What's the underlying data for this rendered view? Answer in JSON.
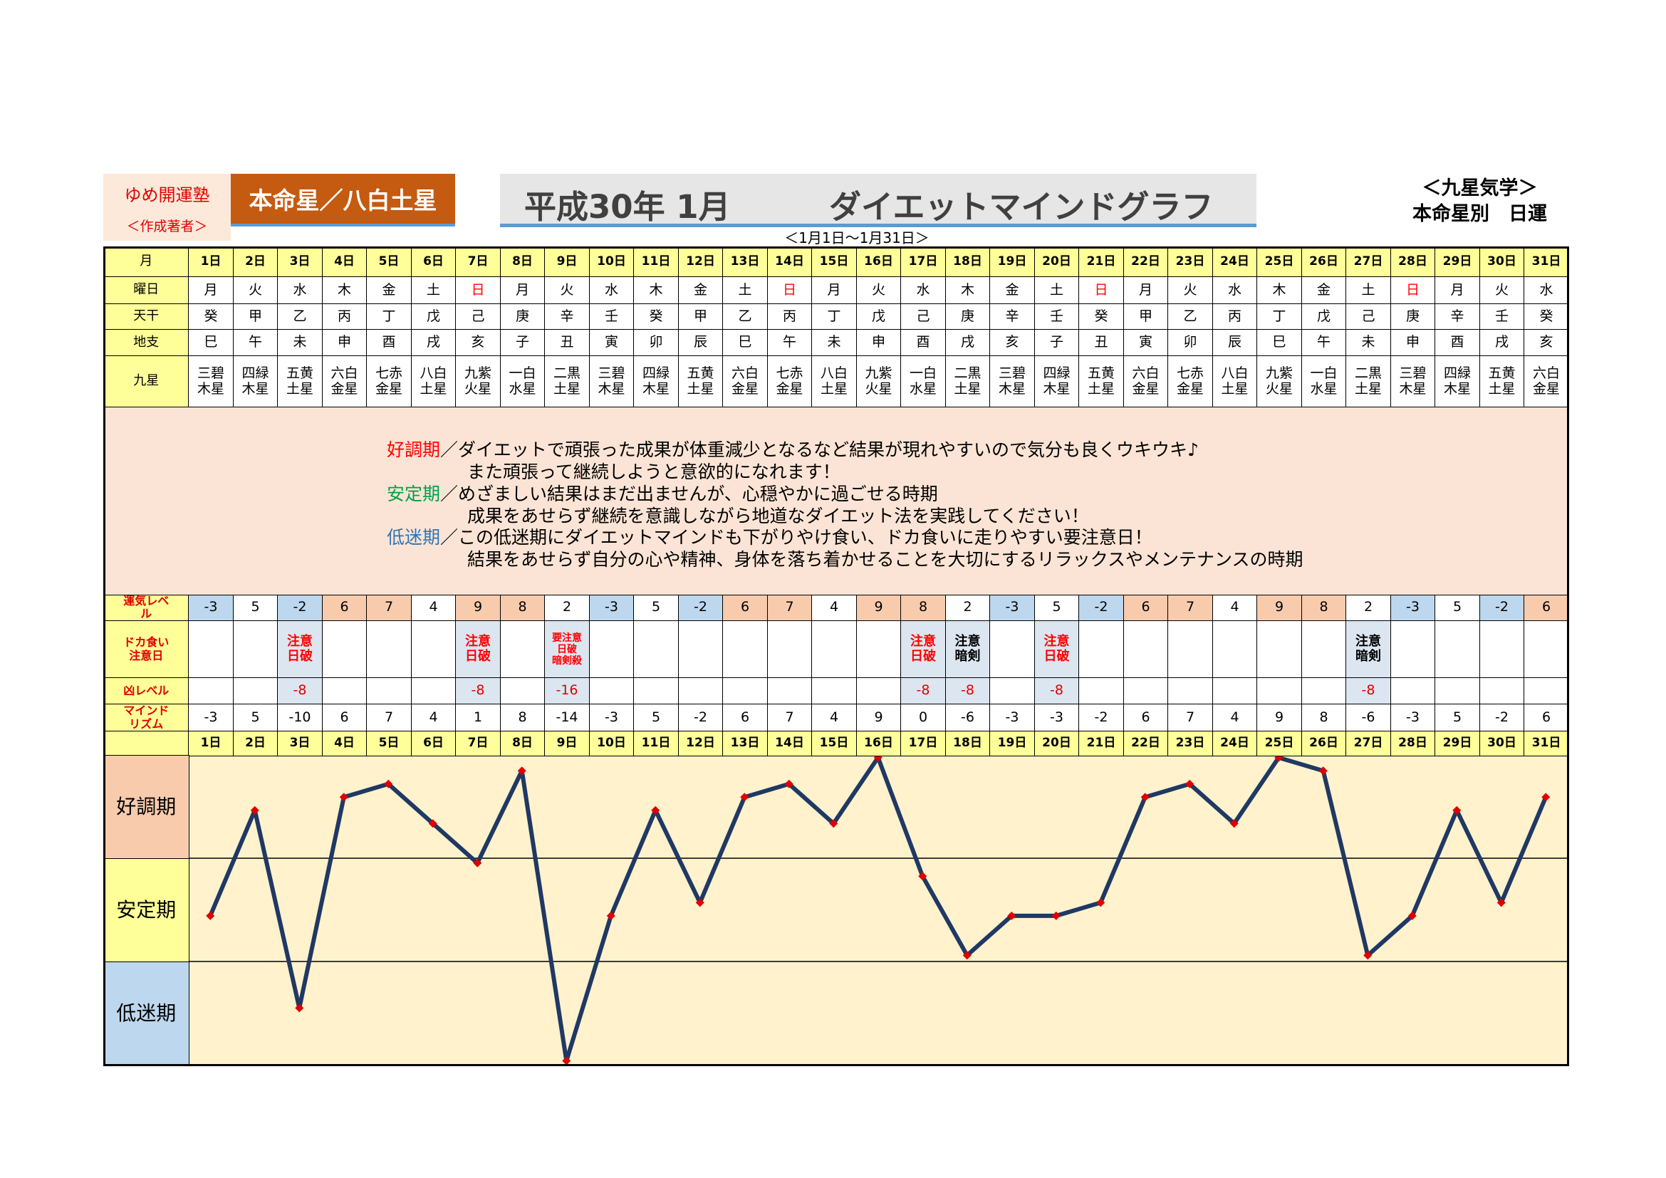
{
  "header": {
    "school": "ゆめ開運塾",
    "author": "＜作成著者＞",
    "honmei": "本命星／八白土星",
    "date": "平成30年 1月",
    "title": "ダイエットマインドグラフ",
    "period": "＜1月1日～1月31日＞",
    "system": "＜九星気学＞",
    "kind": "本命星別　日運"
  },
  "table": {
    "labels": {
      "day": "月",
      "weekday": "曜日",
      "stem": "天干",
      "branch": "地支",
      "star": "九星",
      "luck": "運気レベル",
      "caution": "ドカ食い注意日",
      "bad": "凶レベル",
      "mind": "マインドリズム"
    },
    "weekday": [
      "月",
      "火",
      "水",
      "木",
      "金",
      "土",
      "日",
      "月",
      "火",
      "水",
      "木",
      "金",
      "土",
      "日",
      "月",
      "火",
      "水",
      "木",
      "金",
      "土",
      "日",
      "月",
      "火",
      "水",
      "木",
      "金",
      "土",
      "日",
      "月",
      "火",
      "水"
    ],
    "weekday_color": [
      null,
      null,
      null,
      null,
      null,
      null,
      "#ff0000",
      null,
      null,
      null,
      null,
      null,
      null,
      "#ff0000",
      null,
      null,
      null,
      null,
      null,
      null,
      "#ff0000",
      null,
      null,
      null,
      null,
      null,
      null,
      "#ff0000",
      null,
      null,
      null
    ],
    "stem": [
      "癸",
      "甲",
      "乙",
      "丙",
      "丁",
      "戊",
      "己",
      "庚",
      "辛",
      "壬",
      "癸",
      "甲",
      "乙",
      "丙",
      "丁",
      "戊",
      "己",
      "庚",
      "辛",
      "壬",
      "癸",
      "甲",
      "乙",
      "丙",
      "丁",
      "戊",
      "己",
      "庚",
      "辛",
      "壬",
      "癸"
    ],
    "branch": [
      "巳",
      "午",
      "未",
      "申",
      "酉",
      "戌",
      "亥",
      "子",
      "丑",
      "寅",
      "卯",
      "辰",
      "巳",
      "午",
      "未",
      "申",
      "酉",
      "戌",
      "亥",
      "子",
      "丑",
      "寅",
      "卯",
      "辰",
      "巳",
      "午",
      "未",
      "申",
      "酉",
      "戌",
      "亥"
    ],
    "star": [
      "三碧木星",
      "四緑木星",
      "五黄土星",
      "六白金星",
      "七赤金星",
      "八白土星",
      "九紫火星",
      "一白水星",
      "二黒土星",
      "三碧木星",
      "四緑木星",
      "五黄土星",
      "六白金星",
      "七赤金星",
      "八白土星",
      "九紫火星",
      "一白水星",
      "二黒土星",
      "三碧木星",
      "四緑木星",
      "五黄土星",
      "六白金星",
      "七赤金星",
      "八白土星",
      "九紫火星",
      "一白水星",
      "二黒土星",
      "三碧木星",
      "四緑木星",
      "五黄土星",
      "六白金星"
    ],
    "luck": [
      -3,
      5,
      -2,
      6,
      7,
      4,
      9,
      8,
      2,
      -3,
      5,
      -2,
      6,
      7,
      4,
      9,
      8,
      2,
      -3,
      5,
      -2,
      6,
      7,
      4,
      9,
      8,
      2,
      -3,
      5,
      -2,
      6
    ],
    "caution": [
      null,
      null,
      {
        "lines": [
          "注意",
          "日破"
        ],
        "color": "#ff0000"
      },
      null,
      null,
      null,
      {
        "lines": [
          "注意",
          "日破"
        ],
        "color": "#ff0000"
      },
      null,
      {
        "lines": [
          "要注意",
          "日破",
          "暗剣殺"
        ],
        "color": "#ff0000"
      },
      null,
      null,
      null,
      null,
      null,
      null,
      null,
      {
        "lines": [
          "注意",
          "日破"
        ],
        "color": "#ff0000"
      },
      {
        "lines": [
          "注意",
          "暗剣"
        ],
        "color": "#000000"
      },
      null,
      {
        "lines": [
          "注意",
          "日破"
        ],
        "color": "#ff0000"
      },
      null,
      null,
      null,
      null,
      null,
      null,
      {
        "lines": [
          "注意",
          "暗剣"
        ],
        "color": "#000000"
      },
      null,
      null,
      null,
      null
    ],
    "bad": [
      null,
      null,
      -8,
      null,
      null,
      null,
      -8,
      null,
      -16,
      null,
      null,
      null,
      null,
      null,
      null,
      null,
      -8,
      -8,
      null,
      -8,
      null,
      null,
      null,
      null,
      null,
      null,
      -8,
      null,
      null,
      null,
      null
    ]
  },
  "legend": [
    {
      "name": "好調期",
      "color": "#ff0000",
      "band_color": "#f8cbad",
      "lines": [
        "／ダイエットで頑張った成果が体重減少となるなど結果が現れやすいので気分も良くウキウキ♪",
        "また頑張って継続しようと意欲的になれます！"
      ]
    },
    {
      "name": "安定期",
      "color": "#00a04a",
      "band_color": "#ffff99",
      "lines": [
        "／めざましい結果はまだ出ませんが、心穏やかに過ごせる時期",
        "成果をあせらず継続を意識しながら地道なダイエット法を実践してください！"
      ]
    },
    {
      "name": "低迷期",
      "color": "#2e75b6",
      "band_color": "#bdd7ee",
      "lines": [
        "／この低迷期にダイエットマインドも下がりやけ食い、ドカ食いに走りやすい要注意日！",
        "結果をあせらず自分の心や精神、身体を落ち着かせることを大切にするリラックスやメンテナンスの時期"
      ]
    }
  ],
  "chart_data": {
    "type": "line",
    "categories": [
      "1日",
      "2日",
      "3日",
      "4日",
      "5日",
      "6日",
      "7日",
      "8日",
      "9日",
      "10日",
      "11日",
      "12日",
      "13日",
      "14日",
      "15日",
      "16日",
      "17日",
      "18日",
      "19日",
      "20日",
      "21日",
      "22日",
      "23日",
      "24日",
      "25日",
      "26日",
      "27日",
      "28日",
      "29日",
      "30日",
      "31日"
    ],
    "values": [
      -3,
      5,
      -10,
      6,
      7,
      4,
      1,
      8,
      -14,
      -3,
      5,
      -2,
      6,
      7,
      4,
      9,
      0,
      -6,
      -3,
      -3,
      -2,
      6,
      7,
      4,
      9,
      8,
      -6,
      -3,
      5,
      -2,
      6
    ],
    "color": "#1f3864",
    "marker_color": "#e00000",
    "ylim": [
      -14.3,
      9.2
    ]
  }
}
